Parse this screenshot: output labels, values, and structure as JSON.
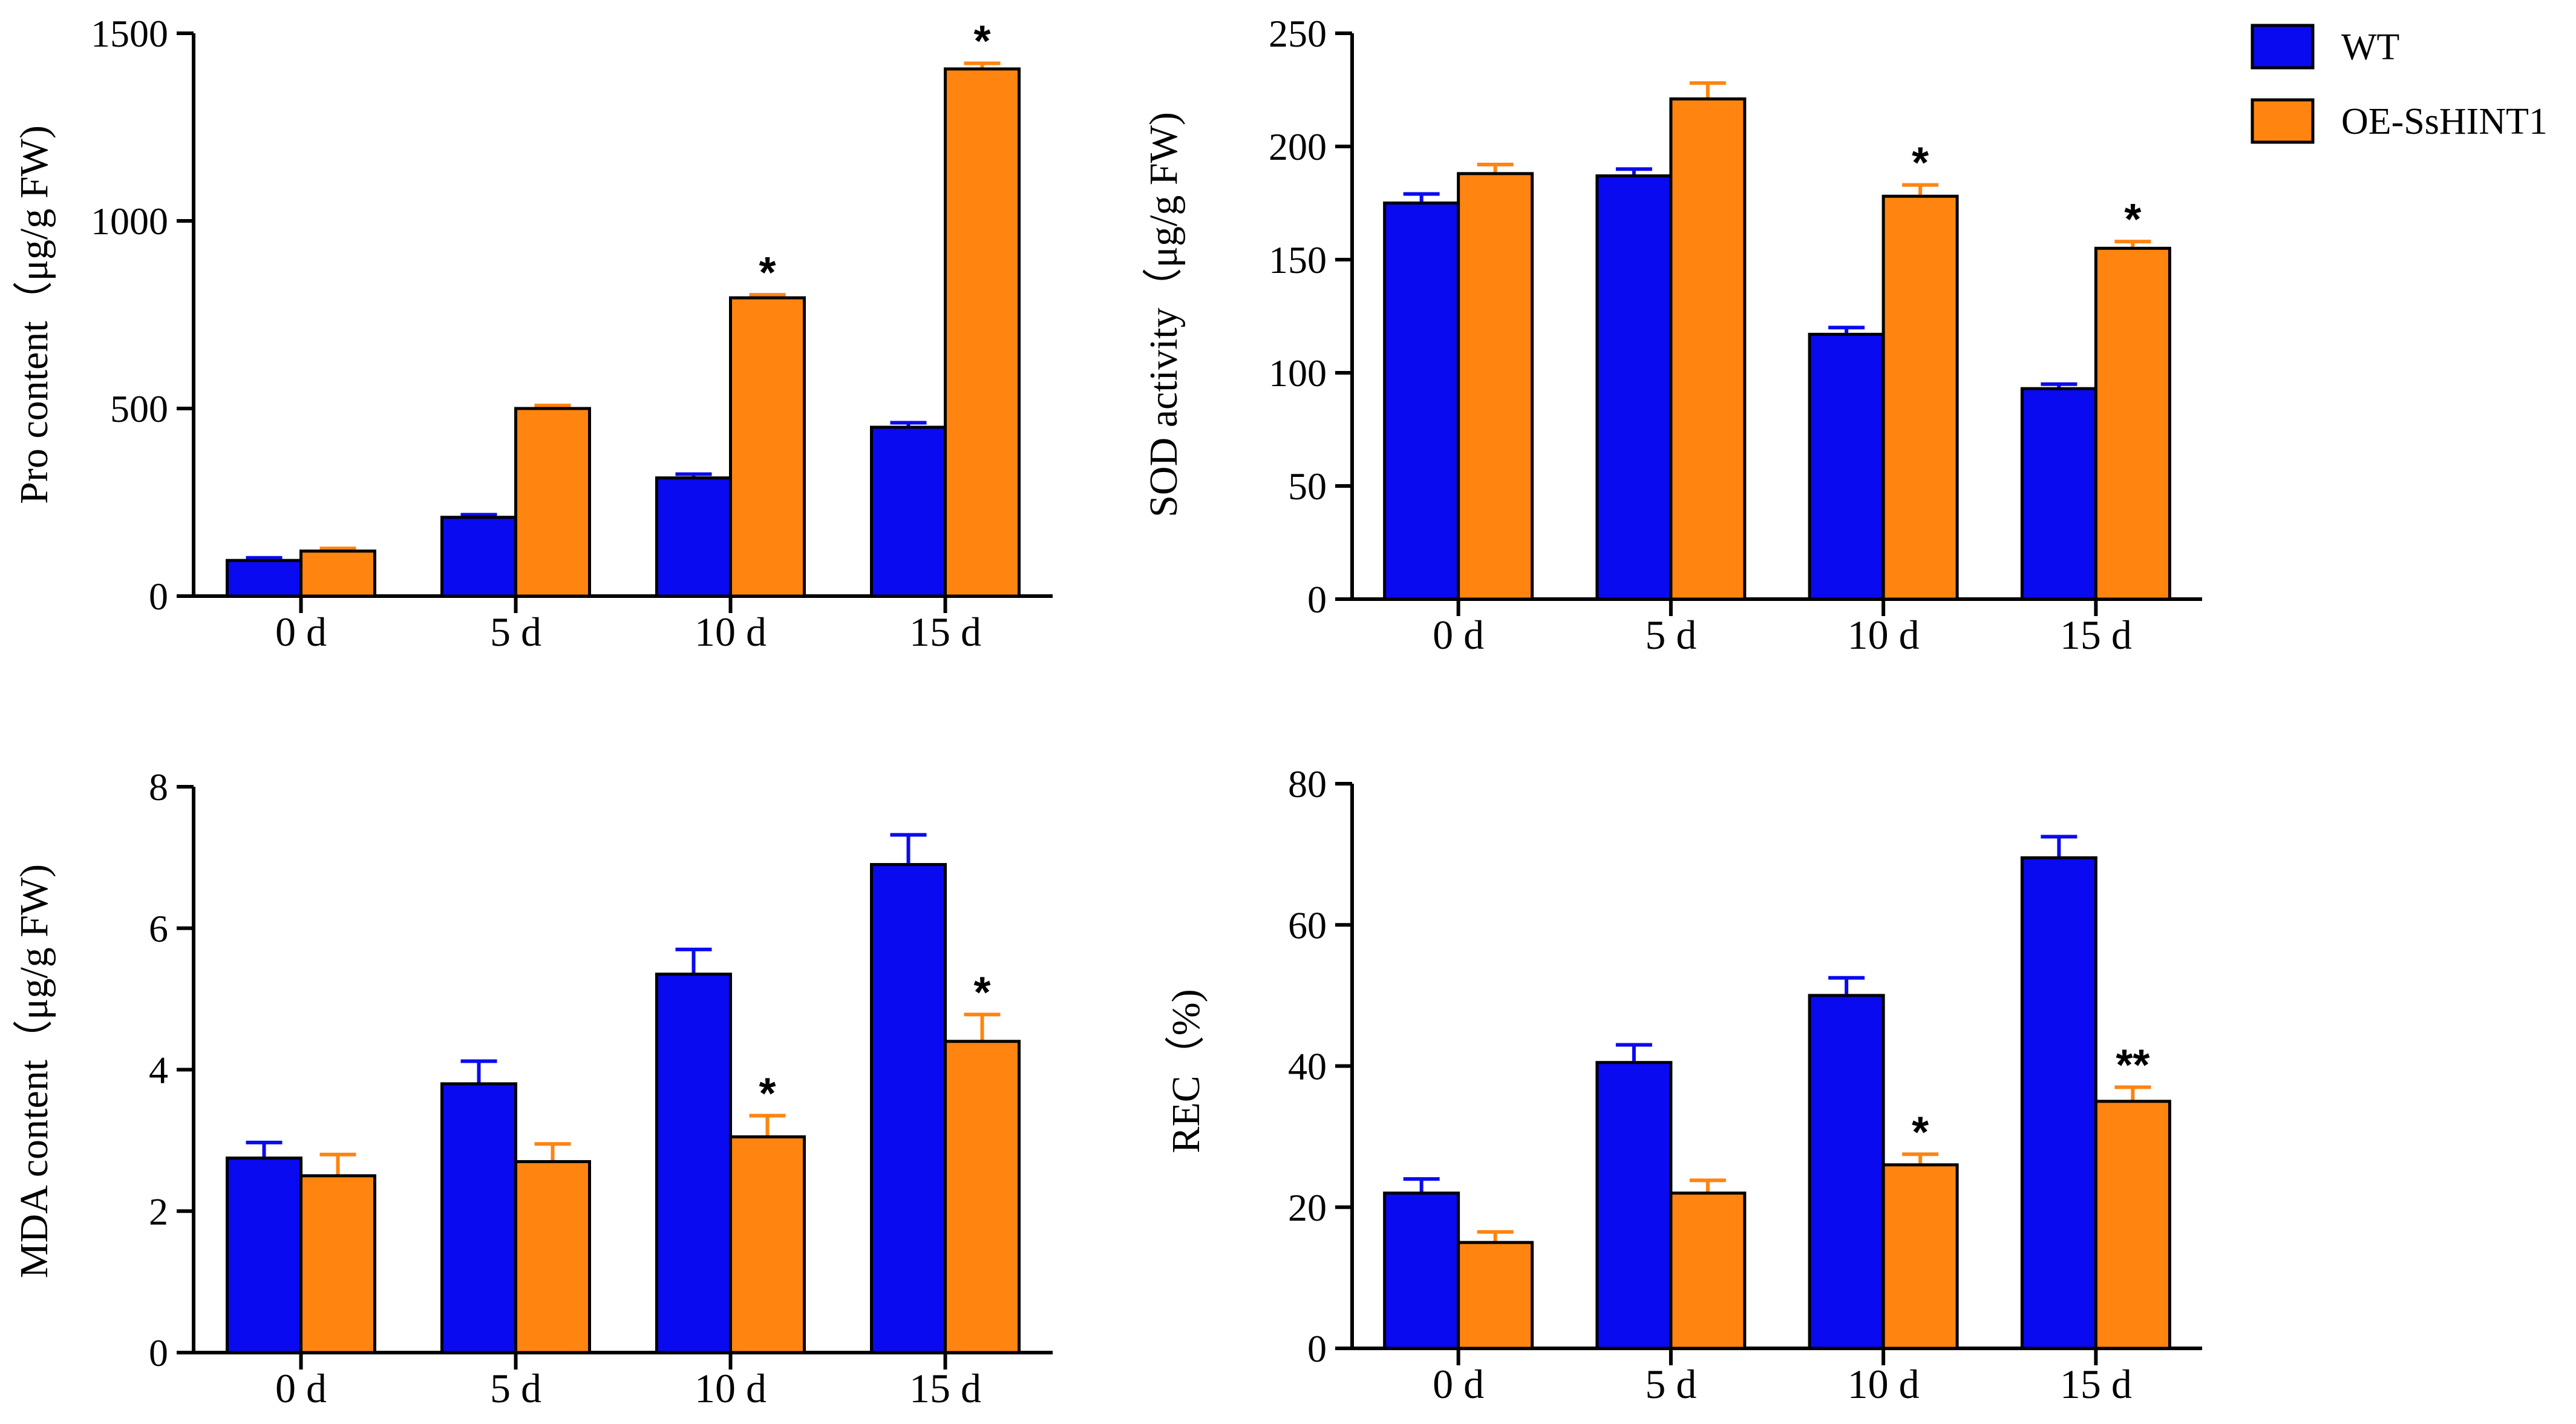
{
  "legend": {
    "items": [
      {
        "name": "WT",
        "color": "#0a0af0"
      },
      {
        "name": "OE-SsHINT1",
        "color": "#ff8410"
      }
    ]
  },
  "chart_data": [
    {
      "id": "pro",
      "type": "bar",
      "title": "",
      "xlabel": "",
      "ylabel": "Pro content（μg/g FW)",
      "categories": [
        "0 d",
        "5 d",
        "10 d",
        "15 d"
      ],
      "ylim": [
        0,
        1500
      ],
      "yticks": [
        0,
        500,
        1000,
        1500
      ],
      "series": [
        {
          "name": "WT",
          "values": [
            95,
            210,
            315,
            450
          ],
          "errors": [
            7,
            7,
            10,
            12
          ],
          "sig": [
            "",
            "",
            "",
            ""
          ]
        },
        {
          "name": "OE-SsHINT1",
          "values": [
            120,
            500,
            795,
            1405
          ],
          "errors": [
            7,
            8,
            8,
            15
          ],
          "sig": [
            "",
            "",
            "*",
            "*"
          ]
        }
      ]
    },
    {
      "id": "sod",
      "type": "bar",
      "title": "",
      "xlabel": "",
      "ylabel": "SOD activity（μg/g FW)",
      "categories": [
        "0 d",
        "5 d",
        "10 d",
        "15 d"
      ],
      "ylim": [
        0,
        250
      ],
      "yticks": [
        0,
        50,
        100,
        150,
        200,
        250
      ],
      "series": [
        {
          "name": "WT",
          "values": [
            175,
            187,
            117,
            93
          ],
          "errors": [
            4,
            3,
            3,
            2
          ],
          "sig": [
            "",
            "",
            "",
            ""
          ]
        },
        {
          "name": "OE-SsHINT1",
          "values": [
            188,
            221,
            178,
            155
          ],
          "errors": [
            4,
            7,
            5,
            3
          ],
          "sig": [
            "",
            "",
            "*",
            "*"
          ]
        }
      ]
    },
    {
      "id": "mda",
      "type": "bar",
      "title": "",
      "xlabel": "",
      "ylabel": "MDA content（μg/g FW)",
      "categories": [
        "0 d",
        "5 d",
        "10 d",
        "15 d"
      ],
      "ylim": [
        0,
        8
      ],
      "yticks": [
        0,
        2,
        4,
        6,
        8
      ],
      "series": [
        {
          "name": "WT",
          "values": [
            2.75,
            3.8,
            5.35,
            6.9
          ],
          "errors": [
            0.22,
            0.32,
            0.35,
            0.42
          ],
          "sig": [
            "",
            "",
            "",
            ""
          ]
        },
        {
          "name": "OE-SsHINT1",
          "values": [
            2.5,
            2.7,
            3.05,
            4.4
          ],
          "errors": [
            0.3,
            0.25,
            0.3,
            0.38
          ],
          "sig": [
            "",
            "",
            "*",
            "*"
          ]
        }
      ]
    },
    {
      "id": "rec",
      "type": "bar",
      "title": "",
      "xlabel": "",
      "ylabel": "REC（%)",
      "categories": [
        "0 d",
        "5 d",
        "10 d",
        "15 d"
      ],
      "ylim": [
        0,
        80
      ],
      "yticks": [
        0,
        20,
        40,
        60,
        80
      ],
      "series": [
        {
          "name": "WT",
          "values": [
            22,
            40.5,
            50,
            69.5
          ],
          "errors": [
            2,
            2.5,
            2.5,
            3
          ],
          "sig": [
            "",
            "",
            "",
            ""
          ]
        },
        {
          "name": "OE-SsHINT1",
          "values": [
            15,
            22,
            26,
            35
          ],
          "errors": [
            1.5,
            1.8,
            1.5,
            2
          ],
          "sig": [
            "",
            "",
            "*",
            "**"
          ]
        }
      ]
    }
  ]
}
